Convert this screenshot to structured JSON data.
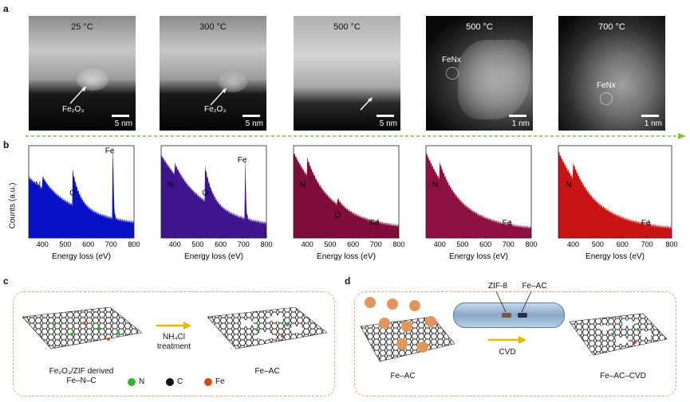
{
  "panel_labels": {
    "a": "a",
    "b": "b",
    "c": "c",
    "d": "d"
  },
  "micrographs": [
    {
      "temp": "25 °C",
      "annotation": "Fe₂O₃",
      "scale": "5 nm",
      "style": "haadf-bright"
    },
    {
      "temp": "300 °C",
      "annotation": "Fe₂O₃",
      "scale": "5 nm",
      "style": "haadf-bright"
    },
    {
      "temp": "500 °C",
      "annotation": "",
      "scale": "5 nm",
      "style": "haadf-bright"
    },
    {
      "temp": "500 °C",
      "annotation": "FeNx",
      "scale": "1 nm",
      "style": "haadf-dark"
    },
    {
      "temp": "700 °C",
      "annotation": "FeNx",
      "scale": "1 nm",
      "style": "haadf-dark"
    }
  ],
  "colors": {
    "blue": "#0a12c8",
    "indigo": "#3e158f",
    "maroon": "#7e0d3a",
    "crimson": "#8c1040",
    "red": "#c81414",
    "dash": "#f0a070",
    "arrow": "#e8b800",
    "green_arrow": "#7cc242"
  },
  "chart_data": [
    {
      "type": "area",
      "xlabel": "Energy loss (eV)",
      "ylabel": "Counts (a.u.)",
      "xlim": [
        340,
        800
      ],
      "xticks": [
        400,
        500,
        600,
        700,
        800
      ],
      "color": "#0a12c8",
      "peaks": [
        {
          "label": "N",
          "x": 401
        },
        {
          "label": "O",
          "x": 532
        },
        {
          "label": "Fe",
          "x": 708
        }
      ]
    },
    {
      "type": "area",
      "xlabel": "Energy loss (eV)",
      "ylabel": "",
      "xlim": [
        340,
        800
      ],
      "xticks": [
        400,
        500,
        600,
        700,
        800
      ],
      "color": "#3e158f",
      "peaks": [
        {
          "label": "N",
          "x": 401
        },
        {
          "label": "O",
          "x": 532
        },
        {
          "label": "Fe",
          "x": 708
        }
      ]
    },
    {
      "type": "area",
      "xlabel": "Energy loss (eV)",
      "ylabel": "",
      "xlim": [
        340,
        800
      ],
      "xticks": [
        400,
        500,
        600,
        700,
        800
      ],
      "color": "#7e0d3a",
      "peaks": [
        {
          "label": "N",
          "x": 401
        },
        {
          "label": "O",
          "x": 532
        },
        {
          "label": "Fe",
          "x": 708
        }
      ]
    },
    {
      "type": "area",
      "xlabel": "Energy loss (eV)",
      "ylabel": "",
      "xlim": [
        340,
        800
      ],
      "xticks": [
        400,
        500,
        600,
        700,
        800
      ],
      "color": "#8c1040",
      "peaks": [
        {
          "label": "N",
          "x": 401
        },
        {
          "label": "Fe",
          "x": 708
        }
      ]
    },
    {
      "type": "area",
      "xlabel": "Energy loss (eV)",
      "ylabel": "",
      "xlim": [
        340,
        800
      ],
      "xticks": [
        400,
        500,
        600,
        700,
        800
      ],
      "color": "#c81414",
      "peaks": [
        {
          "label": "N",
          "x": 401
        },
        {
          "label": "Fe",
          "x": 708
        }
      ]
    }
  ],
  "panel_c": {
    "left_label_line1": "Fe₂O₃/ZIF derived",
    "left_label_line2": "Fe–N–C",
    "arrow_line1": "NH₄Cl",
    "arrow_line2": "treatment",
    "right_label": "Fe–AC",
    "legend": [
      {
        "label": "N",
        "color": "#2fb52f"
      },
      {
        "label": "C",
        "color": "#111111"
      },
      {
        "label": "Fe",
        "color": "#c8501a"
      }
    ]
  },
  "panel_d": {
    "tube_left": "ZIF-8",
    "tube_right": "Fe–AC",
    "arrow_label": "CVD",
    "left_label": "Fe–AC",
    "right_label": "Fe–AC–CVD"
  }
}
